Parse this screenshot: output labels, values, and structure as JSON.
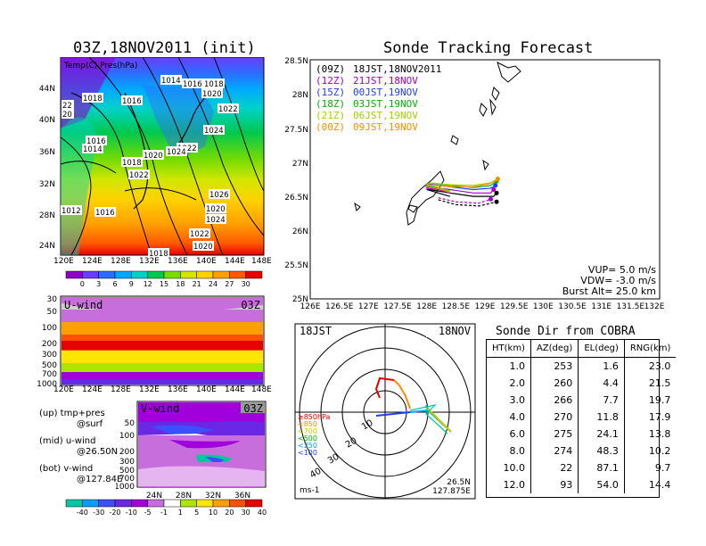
{
  "left": {
    "map_title": "03Z,18NOV2011 (init)",
    "map_label": "Temp(C),Pres(hPa)",
    "map_lat_ticks": [
      "44N",
      "40N",
      "36N",
      "32N",
      "28N",
      "24N"
    ],
    "map_lon_ticks": [
      "120E",
      "124E",
      "128E",
      "132E",
      "136E",
      "140E",
      "144E",
      "148E"
    ],
    "isobar_labels": [
      "1014",
      "1016",
      "1018",
      "1020",
      "1018",
      "1016",
      "1022",
      "1024",
      "1018",
      "1016",
      "1014",
      "1020",
      "1022",
      "1024",
      "1022",
      "1020",
      "1026",
      "1024",
      "1016",
      "1022",
      "1020",
      "1018",
      "1012",
      "22",
      "20"
    ],
    "temp_scale": [
      "0",
      "3",
      "6",
      "9",
      "12",
      "15",
      "18",
      "21",
      "24",
      "27",
      "30"
    ],
    "temp_colors": [
      "#8e00c8",
      "#6a3cff",
      "#2e6cff",
      "#00a8ff",
      "#00d2c8",
      "#00c850",
      "#78dc00",
      "#d2e600",
      "#ffd200",
      "#ffa000",
      "#ff5a00",
      "#e60000"
    ],
    "u_label": "U-wind",
    "u_time": "03Z",
    "u_p_ticks": [
      "30",
      "50",
      "100",
      "200",
      "300",
      "500",
      "700",
      "1000"
    ],
    "u_lon_ticks": [
      "120E",
      "124E",
      "128E",
      "132E",
      "136E",
      "140E",
      "144E",
      "148E"
    ],
    "v_label": "V-wind",
    "v_time": "03Z",
    "v_p_ticks": [
      "50",
      "100",
      "200",
      "300",
      "500",
      "700",
      "1000"
    ],
    "v_lat_ticks": [
      "24N",
      "28N",
      "32N",
      "36N"
    ],
    "notes": [
      {
        "head": "(up) tmp+pres",
        "sub": "@surf"
      },
      {
        "head": "(mid) u-wind",
        "sub": "@26.50N"
      },
      {
        "head": "(bot) v-wind",
        "sub": "@127.84E"
      }
    ],
    "wind_scale": [
      "-40",
      "-30",
      "-20",
      "-10",
      "-5",
      "-1",
      "1",
      "5",
      "10",
      "20",
      "30",
      "40"
    ],
    "wind_colors": [
      "#00c8a0",
      "#00a0ff",
      "#3c50ff",
      "#6a28e6",
      "#a000dc",
      "#c86edc",
      "#ffffff",
      "#aae600",
      "#ffe600",
      "#ffa000",
      "#ff5000",
      "#e60000"
    ]
  },
  "tracking": {
    "title": "Sonde Tracking Forecast",
    "lat_ticks": [
      "28.5N",
      "28N",
      "27.5N",
      "27N",
      "26.5N",
      "26N",
      "25.5N",
      "25N"
    ],
    "lon_ticks": [
      "126E",
      "126.5E",
      "127E",
      "127.5E",
      "128E",
      "128.5E",
      "129E",
      "129.5E",
      "130E",
      "130.5E",
      "131E",
      "131.5E",
      "132E"
    ],
    "legend": [
      {
        "code": "(09Z)",
        "text": "18JST,18NOV2011",
        "color": "#000000"
      },
      {
        "code": "(12Z)",
        "text": "21JST,18NOV",
        "color": "#a000c8"
      },
      {
        "code": "(15Z)",
        "text": "00JST,19NOV",
        "color": "#1e3cff"
      },
      {
        "code": "(18Z)",
        "text": "03JST,19NOV",
        "color": "#00b400"
      },
      {
        "code": "(21Z)",
        "text": "06JST,19NOV",
        "color": "#a0d200"
      },
      {
        "code": "(00Z)",
        "text": "09JST,19NOV",
        "color": "#ff8c00"
      }
    ],
    "params": [
      "VUP= 5.0 m/s",
      "VDW= -3.0 m/s",
      "Burst Alt= 25.0 km"
    ]
  },
  "polar": {
    "left_label": "18JST",
    "right_label": "18NOV",
    "ring_labels": [
      "10",
      "20",
      "30",
      "40"
    ],
    "bottom_left": "ms-1",
    "bottom_right_1": "26.5N",
    "bottom_right_2": "127.875E",
    "alt_legend": [
      "≥850hPa",
      "<850",
      "<700",
      "<500",
      "<250",
      "<100"
    ],
    "alt_colors": [
      "#e60000",
      "#ff8c00",
      "#c8c800",
      "#00b400",
      "#00a0ff",
      "#1e3cff"
    ]
  },
  "cobra": {
    "title": "Sonde Dir from COBRA",
    "headers": [
      "HT(km)",
      "AZ(deg)",
      "EL(deg)",
      "RNG(km)"
    ],
    "rows": [
      [
        "1.0",
        "253",
        "1.6",
        "23.0"
      ],
      [
        "2.0",
        "260",
        "4.4",
        "21.5"
      ],
      [
        "3.0",
        "266",
        "7.7",
        "19.7"
      ],
      [
        "4.0",
        "270",
        "11.8",
        "17.9"
      ],
      [
        "6.0",
        "275",
        "24.1",
        "13.8"
      ],
      [
        "8.0",
        "274",
        "48.3",
        "10.2"
      ],
      [
        "10.0",
        "22",
        "87.1",
        "9.7"
      ],
      [
        "12.0",
        "93",
        "54.0",
        "14.4"
      ]
    ]
  },
  "chart_data": [
    {
      "type": "line",
      "title": "Sonde Tracking Forecast",
      "xlim": [
        126,
        132
      ],
      "ylim": [
        25,
        28.5
      ],
      "series": [
        {
          "name": "(09Z) 18JST,18NOV2011",
          "x": [
            128.4,
            128.2,
            128.0,
            128.05,
            128.4,
            128.8,
            129.15,
            129.2
          ],
          "y": [
            26.5,
            26.55,
            26.6,
            26.6,
            26.55,
            26.5,
            26.5,
            26.55
          ]
        },
        {
          "name": "(12Z) 21JST,18NOV",
          "x": [
            128.4,
            128.2,
            128.0,
            128.05,
            128.4,
            128.8,
            129.1,
            129.15
          ],
          "y": [
            26.55,
            26.6,
            26.62,
            26.64,
            26.6,
            26.55,
            26.55,
            26.6
          ]
        },
        {
          "name": "(15Z) 00JST,19NOV",
          "x": [
            128.4,
            128.2,
            128.0,
            128.05,
            128.4,
            128.8,
            129.1,
            129.18
          ],
          "y": [
            26.58,
            26.62,
            26.65,
            26.68,
            26.64,
            26.6,
            26.62,
            26.66
          ]
        },
        {
          "name": "(18Z) 03JST,19NOV",
          "x": [
            128.4,
            128.2,
            128.0,
            128.05,
            128.4,
            128.8,
            129.1,
            129.2
          ],
          "y": [
            26.58,
            26.63,
            26.66,
            26.7,
            26.66,
            26.63,
            26.66,
            26.72
          ]
        },
        {
          "name": "(21Z) 06JST,19NOV",
          "x": [
            128.4,
            128.2,
            128.0,
            128.05,
            128.4,
            128.8,
            129.1,
            129.22
          ],
          "y": [
            26.58,
            26.63,
            26.67,
            26.7,
            26.67,
            26.66,
            26.7,
            26.76
          ]
        },
        {
          "name": "(00Z) 09JST,19NOV",
          "x": [
            128.4,
            128.2,
            128.0,
            128.05,
            128.4,
            128.8,
            129.1,
            129.22
          ],
          "y": [
            26.56,
            26.61,
            26.64,
            26.67,
            26.64,
            26.64,
            26.69,
            26.75
          ]
        },
        {
          "name": "(09Z) 18JST,18NOV2011 dashed",
          "x": [
            128.2,
            128.5,
            128.9,
            129.2
          ],
          "y": [
            26.45,
            26.38,
            26.36,
            26.42
          ]
        },
        {
          "name": "(12Z) 21JST,18NOV dashed",
          "x": [
            128.2,
            128.5,
            128.9,
            129.1
          ],
          "y": [
            26.48,
            26.42,
            26.4,
            26.46
          ]
        }
      ]
    },
    {
      "type": "table",
      "title": "Sonde Dir from COBRA",
      "columns": [
        "HT(km)",
        "AZ(deg)",
        "EL(deg)",
        "RNG(km)"
      ],
      "rows": [
        [
          1.0,
          253,
          1.6,
          23.0
        ],
        [
          2.0,
          260,
          4.4,
          21.5
        ],
        [
          3.0,
          266,
          7.7,
          19.7
        ],
        [
          4.0,
          270,
          11.8,
          17.9
        ],
        [
          6.0,
          275,
          24.1,
          13.8
        ],
        [
          8.0,
          274,
          48.3,
          10.2
        ],
        [
          10.0,
          22,
          87.1,
          9.7
        ],
        [
          12.0,
          93,
          54.0,
          14.4
        ]
      ]
    }
  ]
}
